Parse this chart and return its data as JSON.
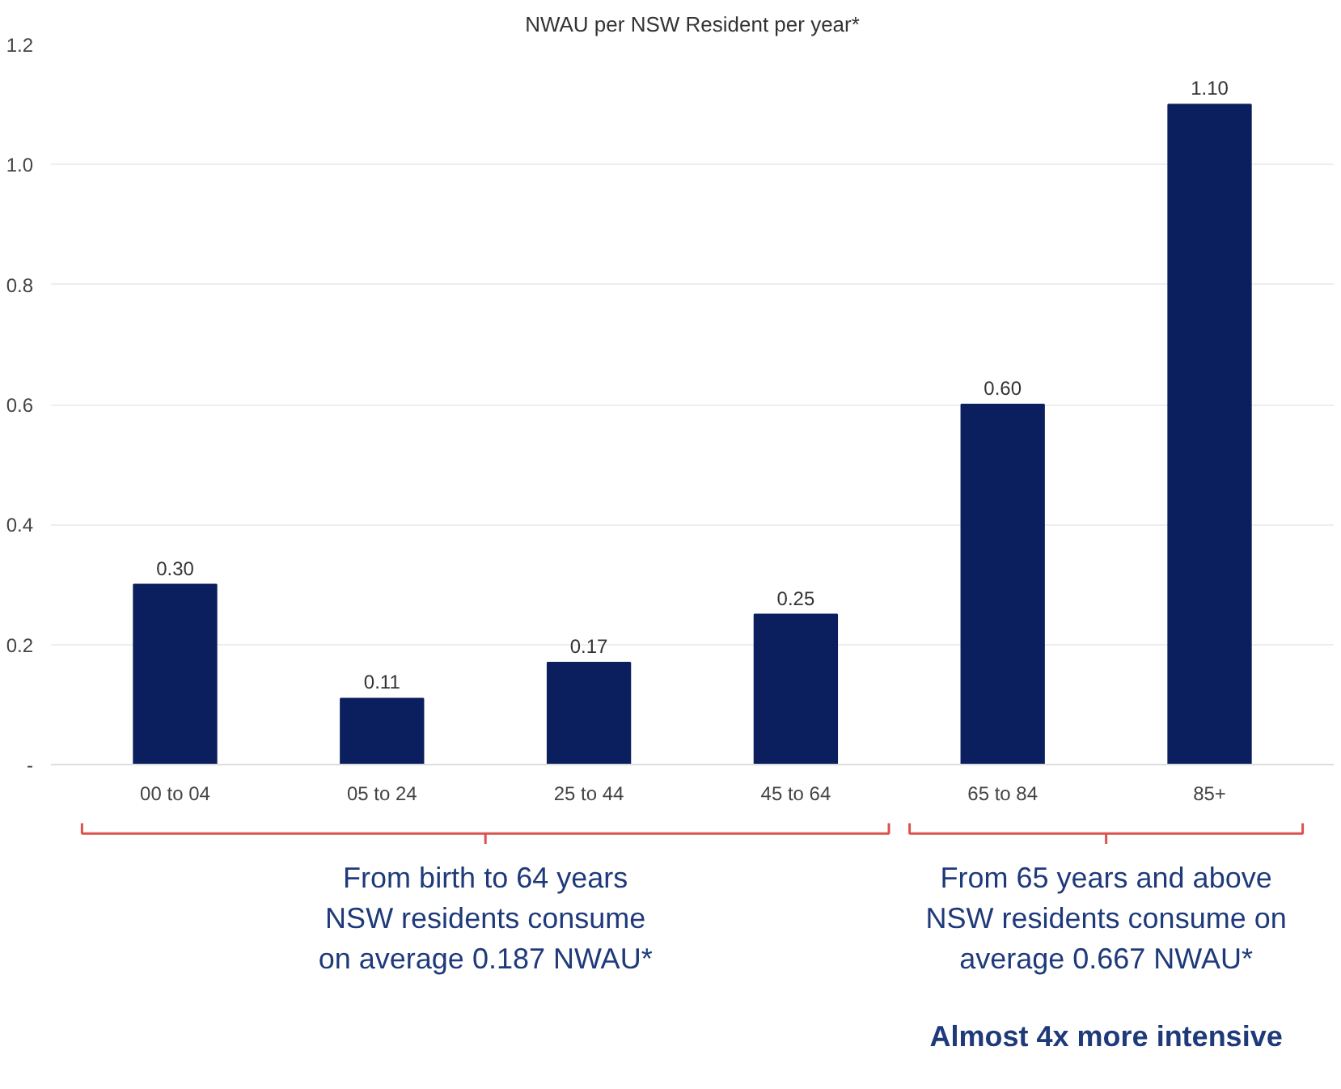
{
  "chart_data": {
    "type": "bar",
    "title": "NWAU per NSW Resident per year*",
    "categories": [
      "00 to 04",
      "05 to 24",
      "25 to 44",
      "45 to 64",
      "65 to 84",
      "85+"
    ],
    "values": [
      0.3,
      0.11,
      0.17,
      0.25,
      0.6,
      1.1
    ],
    "value_labels": [
      "0.30",
      "0.11",
      "0.17",
      "0.25",
      "0.60",
      "1.10"
    ],
    "color": "#0b1f5e",
    "ylim": [
      0,
      1.2
    ],
    "yticks": [
      {
        "value": 0,
        "label": "-"
      },
      {
        "value": 0.2,
        "label": "0.2"
      },
      {
        "value": 0.4,
        "label": "0.4"
      },
      {
        "value": 0.6,
        "label": "0.6"
      },
      {
        "value": 0.8,
        "label": "0.8"
      },
      {
        "value": 1.0,
        "label": "1.0"
      },
      {
        "value": 1.2,
        "label": "1.2"
      }
    ],
    "grid": "y",
    "annotations": [
      "From birth to 64 years\nNSW residents consume\non average 0.187 NWAU*",
      "From 65 years and above\nNSW residents consume on\naverage 0.667 NWAU*",
      "Almost 4x more intensive"
    ]
  }
}
